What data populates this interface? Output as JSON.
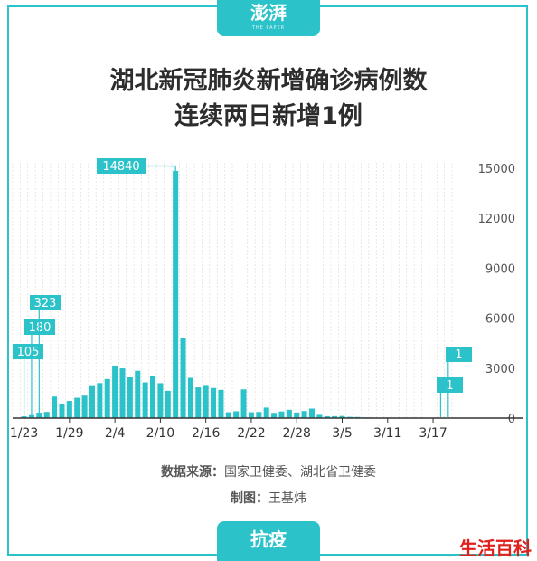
{
  "brand": {
    "logo_text": "澎湃",
    "logo_sub": "THE PAPER"
  },
  "header": {
    "title_line1": "湖北新冠肺炎新增确诊病例数",
    "title_line2": "连续两日新增1例"
  },
  "footer": {
    "source_label": "数据来源：",
    "source_text": "国家卫健委、湖北省卫健委",
    "maker_label": "制图：",
    "maker_text": "王基炜",
    "topic_tab": "抗疫"
  },
  "watermark": "生活百科",
  "colors": {
    "accent": "#2bc3c9",
    "bar": "#2bc3c9",
    "text": "#2d2d2d"
  },
  "chart_data": {
    "type": "bar",
    "x_tick_labels": [
      "1/23",
      "1/29",
      "2/4",
      "2/10",
      "2/16",
      "2/22",
      "2/28",
      "3/5",
      "3/11",
      "3/17"
    ],
    "x_tick_indices": [
      1,
      7,
      13,
      19,
      25,
      31,
      37,
      43,
      49,
      55
    ],
    "y_ticks": [
      0,
      3000,
      6000,
      9000,
      12000,
      15000
    ],
    "ylim": [
      0,
      15000
    ],
    "grid": true,
    "y_axis_position": "right",
    "x_start_date": "1/22",
    "values": [
      0,
      105,
      180,
      323,
      371,
      1291,
      840,
      1032,
      1220,
      1347,
      1921,
      2103,
      2345,
      3156,
      2987,
      2447,
      2841,
      2147,
      2531,
      2097,
      1638,
      14840,
      4823,
      2420,
      1843,
      1933,
      1807,
      1693,
      349,
      411,
      1725,
      349,
      366,
      630,
      313,
      398,
      499,
      334,
      423,
      570,
      196,
      114,
      115,
      126,
      74,
      67,
      41,
      36,
      17,
      8,
      13,
      4,
      1,
      0,
      0,
      0,
      1,
      1
    ],
    "annotations": [
      {
        "index": 1,
        "label": "105"
      },
      {
        "index": 2,
        "label": "180"
      },
      {
        "index": 3,
        "label": "323"
      },
      {
        "index": 21,
        "label": "14840"
      },
      {
        "index": 56,
        "label": "1"
      },
      {
        "index": 57,
        "label": "1"
      }
    ]
  }
}
